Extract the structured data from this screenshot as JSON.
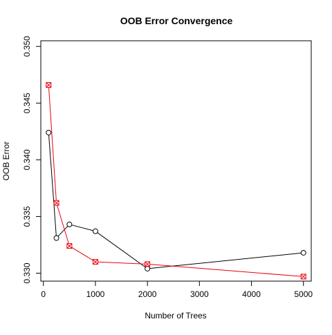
{
  "chart_data": {
    "type": "line",
    "title": "OOB Error Convergence",
    "xlabel": "Number of Trees",
    "ylabel": "OOB Error",
    "xlim": [
      -50,
      5150
    ],
    "ylim": [
      0.3293,
      0.3505
    ],
    "xticks": [
      0,
      1000,
      2000,
      3000,
      4000,
      5000
    ],
    "yticks": [
      0.33,
      0.335,
      0.34,
      0.345,
      0.35
    ],
    "ytick_labels": [
      "0.330",
      "0.335",
      "0.340",
      "0.345",
      "0.350"
    ],
    "grid": false,
    "x": [
      100,
      250,
      500,
      1000,
      2000,
      5000
    ],
    "series": [
      {
        "color": "#000000",
        "marker": "circle",
        "values": [
          0.3424,
          0.3331,
          0.3343,
          0.3337,
          0.3304,
          0.3318
        ]
      },
      {
        "color": "#e8000b",
        "marker": "boxed-x",
        "values": [
          0.3466,
          0.3362,
          0.3324,
          0.331,
          0.3308,
          0.3297
        ]
      }
    ]
  }
}
